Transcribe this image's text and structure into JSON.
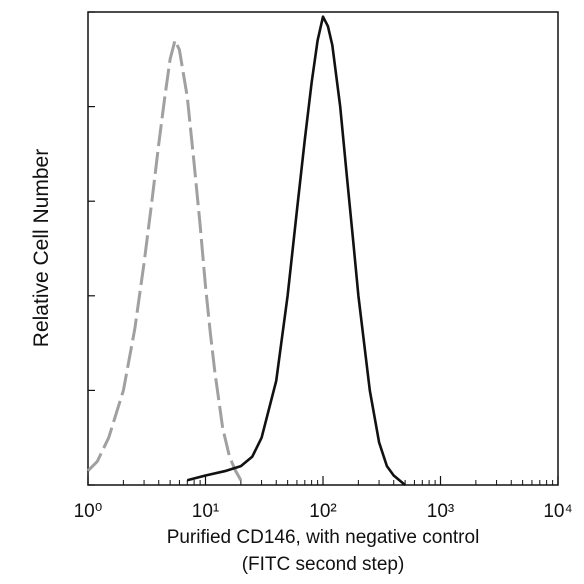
{
  "chart_data": {
    "type": "line",
    "ylabel": "Relative Cell Number",
    "xlabel": [
      "Purified  CD146, with negative control",
      "(FITC second step)"
    ],
    "xscale": "log",
    "xlim": [
      1,
      10000
    ],
    "xticks": [
      {
        "value": 1,
        "label": "10⁰"
      },
      {
        "value": 10,
        "label": "10¹"
      },
      {
        "value": 100,
        "label": "10²"
      },
      {
        "value": 1000,
        "label": "10³"
      },
      {
        "value": 10000,
        "label": "10⁴"
      }
    ],
    "ylim": [
      0,
      100
    ],
    "yticks": [
      0,
      20,
      40,
      60,
      80,
      100
    ],
    "show_ytick_labels": false,
    "series": [
      {
        "name": "negative control",
        "color": "#a0a0a0",
        "dashed": true,
        "x": [
          1,
          1.2,
          1.5,
          2,
          2.5,
          3,
          3.5,
          4,
          4.5,
          5,
          5.5,
          6,
          7,
          8,
          9,
          10,
          11,
          12,
          14,
          16,
          18,
          20
        ],
        "values": [
          3,
          5,
          10,
          20,
          33,
          47,
          60,
          72,
          82,
          90,
          94,
          92,
          82,
          68,
          55,
          42,
          32,
          24,
          12,
          6,
          3,
          1
        ]
      },
      {
        "name": "CD146",
        "color": "#111111",
        "dashed": false,
        "x": [
          7,
          10,
          15,
          20,
          25,
          30,
          40,
          50,
          60,
          70,
          80,
          90,
          100,
          110,
          120,
          140,
          160,
          180,
          200,
          250,
          300,
          350,
          400,
          500
        ],
        "values": [
          1,
          2,
          3,
          4,
          6,
          10,
          22,
          40,
          58,
          73,
          85,
          94,
          99,
          97,
          93,
          80,
          65,
          52,
          40,
          20,
          9,
          4,
          2,
          0
        ]
      }
    ]
  }
}
